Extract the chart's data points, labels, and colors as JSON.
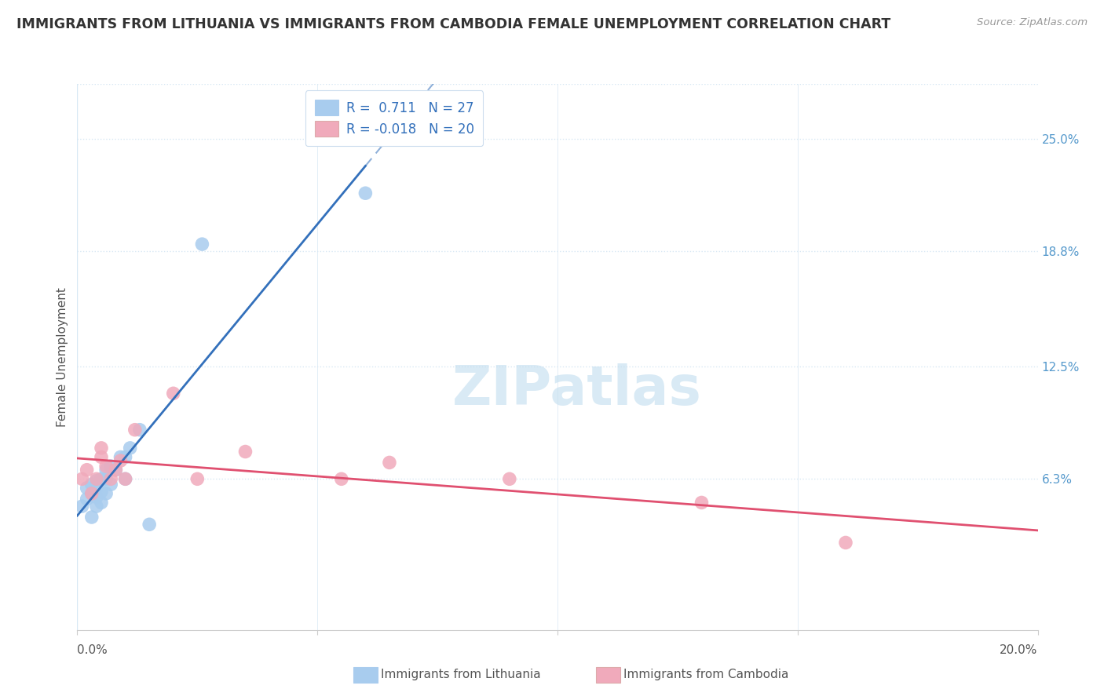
{
  "title": "IMMIGRANTS FROM LITHUANIA VS IMMIGRANTS FROM CAMBODIA FEMALE UNEMPLOYMENT CORRELATION CHART",
  "source": "Source: ZipAtlas.com",
  "ylabel": "Female Unemployment",
  "xlim": [
    0.0,
    0.2
  ],
  "ylim": [
    -0.02,
    0.28
  ],
  "ytick_vals": [
    0.063,
    0.125,
    0.188,
    0.25
  ],
  "ytick_labels": [
    "6.3%",
    "12.5%",
    "18.8%",
    "25.0%"
  ],
  "r_lithuania": 0.711,
  "n_lithuania": 27,
  "r_cambodia": -0.018,
  "n_cambodia": 20,
  "color_lithuania": "#A8CCEE",
  "color_cambodia": "#F0AABB",
  "regression_color_lithuania": "#3370BB",
  "regression_color_cambodia": "#E05070",
  "watermark": "ZIPatlas",
  "grid_color": "#D8E8F4",
  "background_color": "#FFFFFF",
  "lithuania_x": [
    0.001,
    0.002,
    0.002,
    0.003,
    0.003,
    0.003,
    0.004,
    0.004,
    0.004,
    0.004,
    0.005,
    0.005,
    0.005,
    0.006,
    0.006,
    0.006,
    0.007,
    0.007,
    0.008,
    0.009,
    0.01,
    0.01,
    0.011,
    0.013,
    0.015,
    0.026,
    0.06
  ],
  "lithuania_y": [
    0.048,
    0.052,
    0.058,
    0.042,
    0.055,
    0.06,
    0.048,
    0.053,
    0.058,
    0.062,
    0.05,
    0.056,
    0.063,
    0.055,
    0.063,
    0.068,
    0.06,
    0.07,
    0.068,
    0.075,
    0.063,
    0.075,
    0.08,
    0.09,
    0.038,
    0.192,
    0.22
  ],
  "cambodia_x": [
    0.001,
    0.002,
    0.003,
    0.004,
    0.005,
    0.005,
    0.006,
    0.007,
    0.008,
    0.009,
    0.01,
    0.012,
    0.02,
    0.025,
    0.035,
    0.055,
    0.065,
    0.09,
    0.13,
    0.16
  ],
  "cambodia_y": [
    0.063,
    0.068,
    0.055,
    0.063,
    0.075,
    0.08,
    0.07,
    0.063,
    0.068,
    0.073,
    0.063,
    0.09,
    0.11,
    0.063,
    0.078,
    0.063,
    0.072,
    0.063,
    0.05,
    0.028
  ]
}
